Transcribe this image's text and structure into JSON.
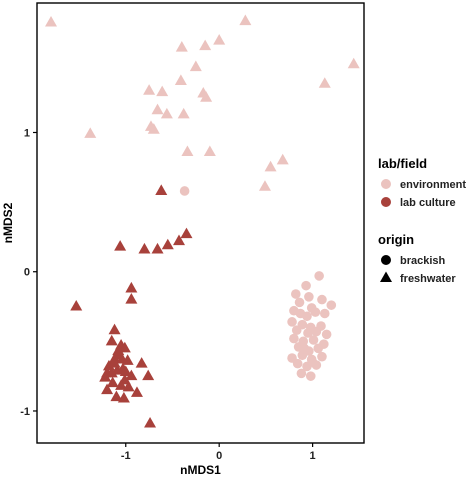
{
  "chart_data": {
    "type": "scatter",
    "xlabel": "nMDS1",
    "ylabel": "nMDS2",
    "xlim": [
      -1.95,
      1.55
    ],
    "ylim": [
      -1.23,
      1.93
    ],
    "xticks": [
      -1,
      0,
      1
    ],
    "yticks": [
      -1,
      0,
      1
    ],
    "grid": false,
    "legend_position": "right",
    "colors": {
      "environment": "#ebc3bf",
      "lab culture": "#a8413b"
    },
    "legends": [
      {
        "title": "lab/field",
        "items": [
          {
            "label": "environment",
            "marker": "circle",
            "color": "#ebc3bf"
          },
          {
            "label": "lab culture",
            "marker": "circle",
            "color": "#a8413b"
          }
        ]
      },
      {
        "title": "origin",
        "items": [
          {
            "label": "brackish",
            "marker": "circle",
            "color": "#000000"
          },
          {
            "label": "freshwater",
            "marker": "triangle",
            "color": "#000000"
          }
        ]
      }
    ],
    "series": [
      {
        "labfield": "environment",
        "origin": "freshwater",
        "x": [
          -1.8,
          0.28,
          -0.15,
          0.0,
          -0.25,
          -0.4,
          -0.41,
          -0.61,
          -0.66,
          -0.75,
          -0.38,
          -0.56,
          -0.73,
          -0.7,
          -0.34,
          -0.17,
          -0.14,
          -1.38,
          -0.1,
          0.68,
          0.55,
          0.49,
          1.13,
          1.44
        ],
        "y": [
          1.79,
          1.8,
          1.62,
          1.66,
          1.47,
          1.61,
          1.37,
          1.29,
          1.16,
          1.3,
          1.13,
          1.13,
          1.04,
          1.02,
          0.86,
          1.28,
          1.25,
          0.99,
          0.86,
          0.8,
          0.75,
          0.61,
          1.35,
          1.49
        ]
      },
      {
        "labfield": "environment",
        "origin": "brackish",
        "x": [
          -0.37,
          1.07,
          0.93,
          0.82,
          0.96,
          1.2,
          0.86,
          1.1,
          0.8,
          0.99,
          0.87,
          0.94,
          1.03,
          1.13,
          0.78,
          0.89,
          0.98,
          1.09,
          0.83,
          0.95,
          1.04,
          1.15,
          0.8,
          0.9,
          1.01,
          1.12,
          0.85,
          0.96,
          1.06,
          0.78,
          0.89,
          0.99,
          1.1,
          0.84,
          0.94,
          1.04,
          0.88,
          0.98,
          0.91,
          1.0
        ],
        "y": [
          0.58,
          -0.03,
          -0.1,
          -0.16,
          -0.18,
          -0.24,
          -0.22,
          -0.2,
          -0.28,
          -0.26,
          -0.3,
          -0.32,
          -0.29,
          -0.3,
          -0.36,
          -0.38,
          -0.4,
          -0.39,
          -0.42,
          -0.44,
          -0.43,
          -0.45,
          -0.48,
          -0.5,
          -0.49,
          -0.52,
          -0.54,
          -0.57,
          -0.55,
          -0.62,
          -0.6,
          -0.63,
          -0.61,
          -0.66,
          -0.68,
          -0.67,
          -0.73,
          -0.75,
          -0.55,
          -0.65
        ]
      },
      {
        "labfield": "lab culture",
        "origin": "freshwater",
        "x": [
          -0.62,
          -0.35,
          -0.43,
          -0.55,
          -0.8,
          -0.66,
          -1.06,
          -0.94,
          -0.94,
          -1.53,
          -1.12,
          -1.05,
          -1.15,
          -1.01,
          -1.08,
          -1.12,
          -1.04,
          -1.18,
          -0.98,
          -0.83,
          -0.76,
          -1.2,
          -1.09,
          -0.94,
          -1.01,
          -1.22,
          -1.14,
          -1.05,
          -0.97,
          -0.88,
          -1.2,
          -1.1,
          -1.02,
          -1.15,
          -1.03,
          -0.74,
          -1.08,
          -1.12,
          -1.0
        ],
        "y": [
          0.58,
          0.27,
          0.22,
          0.19,
          0.16,
          0.16,
          0.18,
          -0.12,
          -0.2,
          -0.25,
          -0.42,
          -0.53,
          -0.5,
          -0.55,
          -0.6,
          -0.63,
          -0.63,
          -0.68,
          -0.64,
          -0.66,
          -0.75,
          -0.73,
          -0.71,
          -0.75,
          -0.78,
          -0.76,
          -0.8,
          -0.82,
          -0.83,
          -0.87,
          -0.85,
          -0.9,
          -0.91,
          -0.73,
          -0.7,
          -1.09,
          -0.57,
          -0.66,
          -0.72
        ]
      }
    ]
  }
}
